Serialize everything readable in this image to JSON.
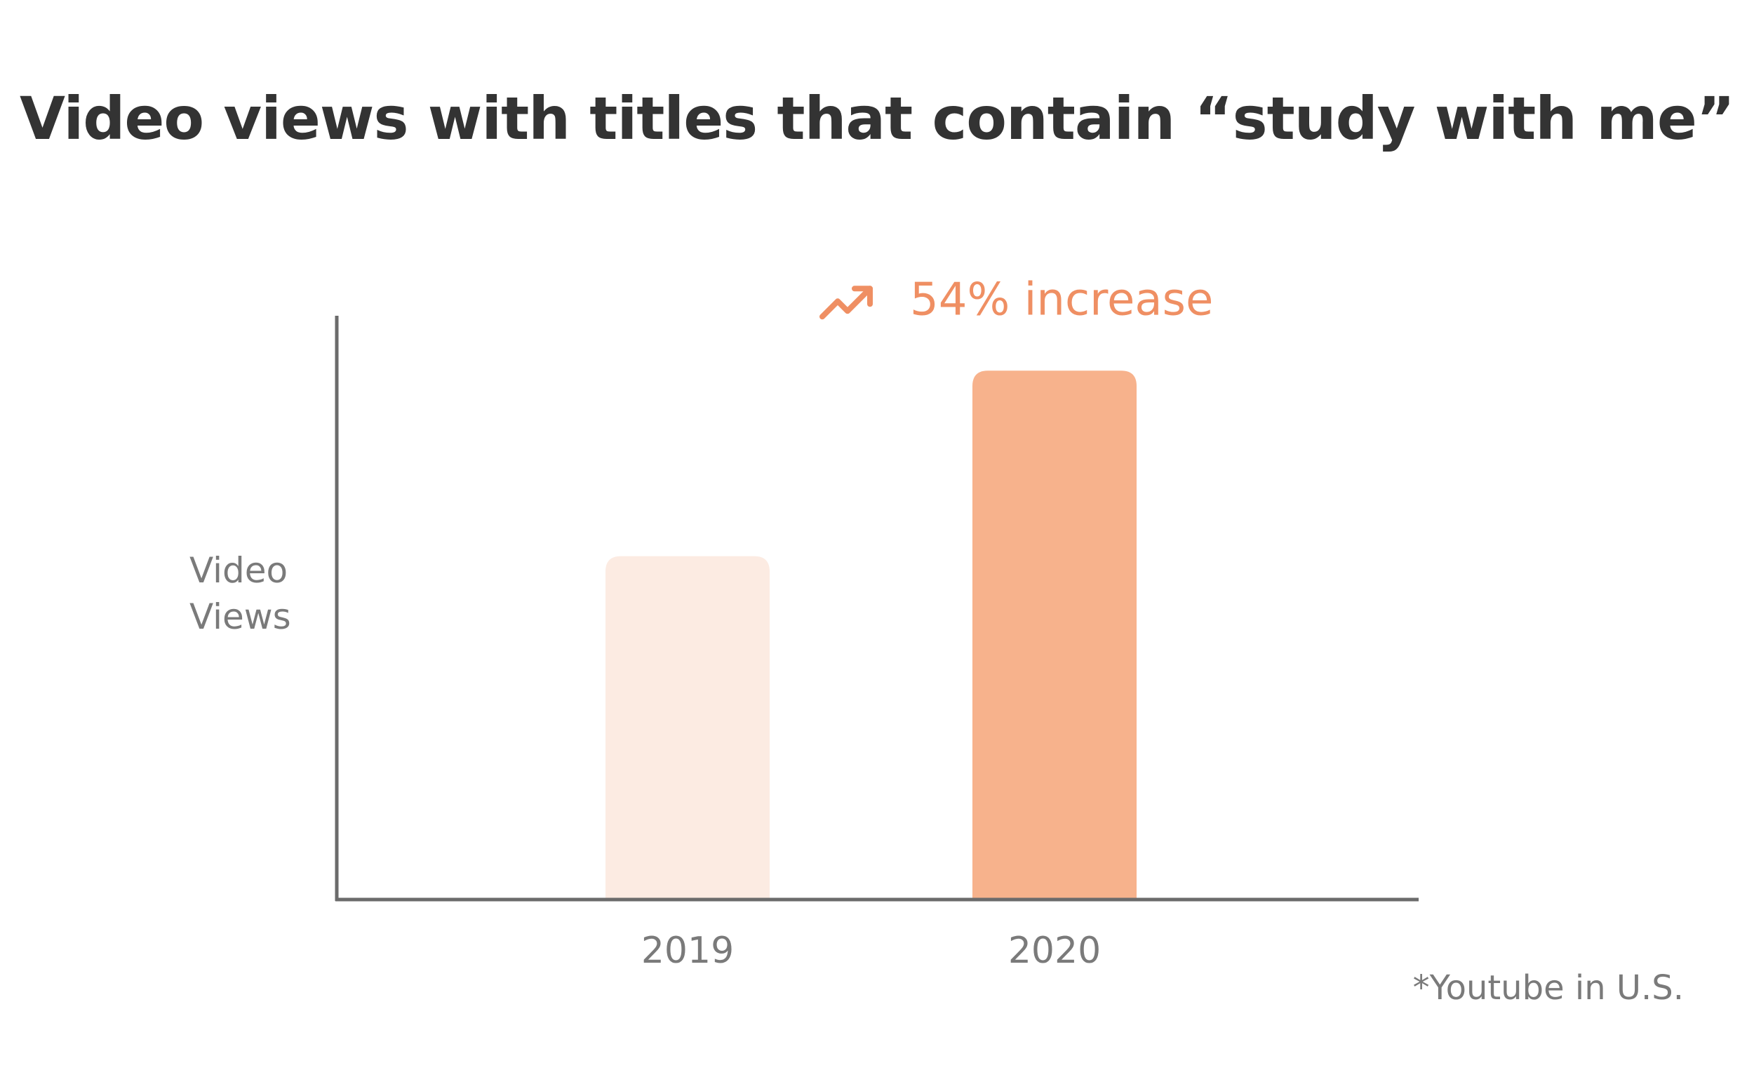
{
  "chart_data": {
    "type": "bar",
    "title": "Video views with titles that contain “study with me”",
    "ylabel_lines": [
      "Video",
      "Views"
    ],
    "xlabel": "",
    "categories": [
      "2019",
      "2020"
    ],
    "values": [
      100,
      154
    ],
    "ylim": [
      0,
      170
    ],
    "bar_colors": [
      "#fcebe2",
      "#f7b28c"
    ],
    "axis_color": "#6b6b6b",
    "grid": false,
    "annotation": {
      "text": "54% increase",
      "icon": "trending-up-icon",
      "color": "#ef8f63"
    },
    "footnote": "*Youtube in U.S."
  }
}
